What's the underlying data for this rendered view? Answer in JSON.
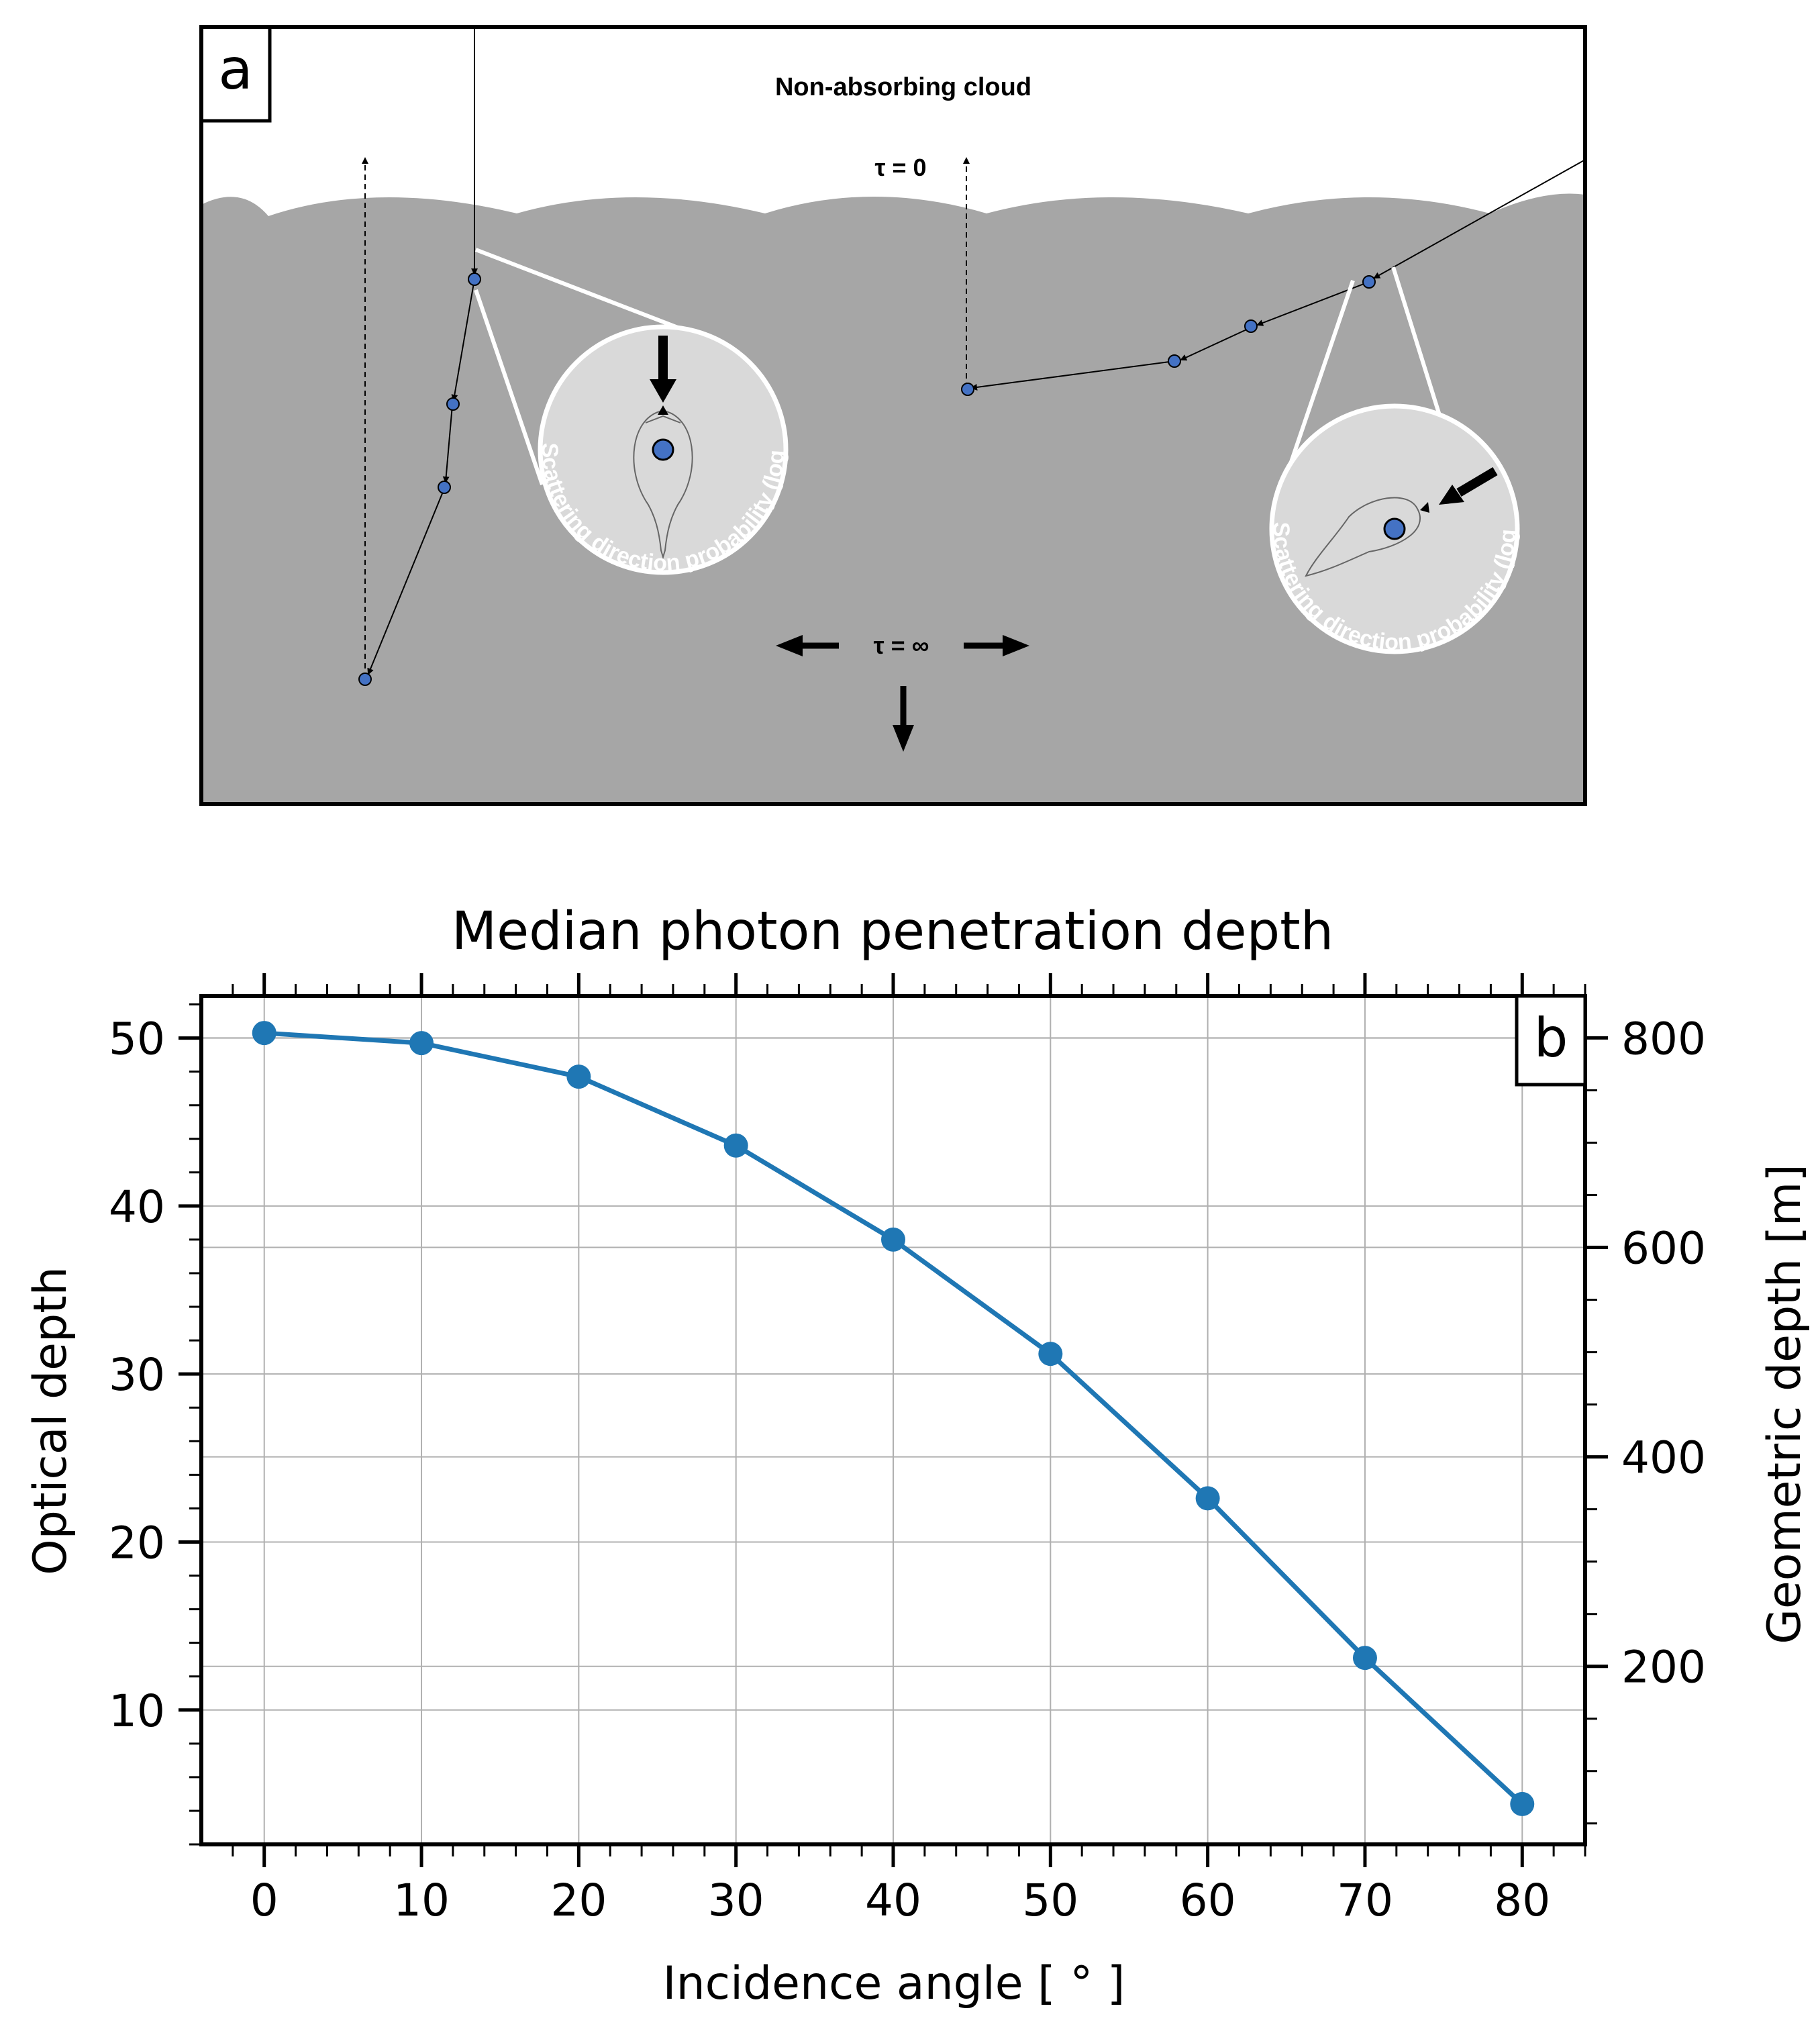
{
  "panel_a": {
    "label": "a",
    "title": "Non-absorbing cloud",
    "tau_top": "τ = 0",
    "tau_bottom": "τ = ∞",
    "inset_caption": "Scattering direction probability (log)",
    "colors": {
      "cloud": "#a6a6a6",
      "inset": "#d9d9d9",
      "photon": "#4472c4"
    }
  },
  "panel_b": {
    "label": "b",
    "title": "Median photon penetration depth",
    "xlabel": "Incidence angle [ ° ]",
    "ylabel_left": "Optical depth",
    "ylabel_right": "Geometric depth [m]",
    "right_ticks": [
      "200",
      "400",
      "600",
      "800"
    ]
  },
  "chart_data": {
    "type": "line",
    "title": "Median photon penetration depth",
    "xlabel": "Incidence angle [ ° ]",
    "ylabel": "Optical depth",
    "y2label": "Geometric depth [m]",
    "x": [
      0,
      10,
      20,
      30,
      40,
      50,
      60,
      70,
      80
    ],
    "series": [
      {
        "values": [
          50.3,
          49.7,
          47.7,
          43.6,
          38.0,
          31.2,
          22.6,
          13.1,
          4.4
        ],
        "color": "#1f77b4"
      }
    ],
    "xlim": [
      -4,
      84
    ],
    "ylim": [
      2,
      52.5
    ],
    "y2lim": [
      30,
      840
    ],
    "xticks": [
      0,
      10,
      20,
      30,
      40,
      50,
      60,
      70,
      80
    ],
    "yticks": [
      10,
      20,
      30,
      40,
      50
    ],
    "y2ticks": [
      200,
      400,
      600,
      800
    ],
    "grid": true
  }
}
